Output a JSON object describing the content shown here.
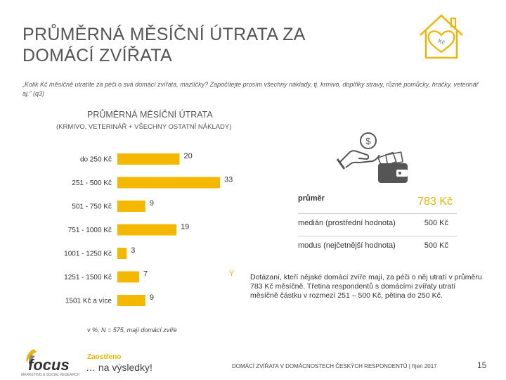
{
  "header": {
    "title_line1": "PRŮMĚRNÁ MĚSÍČNÍ ÚTRATA ZA",
    "title_line2": "DOMÁCÍ ZVÍŘATA"
  },
  "question": "„Kolik Kč měsíčně utratíte za péči o svá domácí zvířata, mazlíčky? Započítejte prosím všechny náklady, tj. krmivo, doplňky stravy, různé pomůcky, hračky, veterinář aj.” (q3)",
  "chart_data": {
    "type": "bar",
    "orientation": "horizontal",
    "title": "PRŮMĚRNÁ MĚSÍČNÍ ÚTRATA",
    "subtitle": "(KRMIVO, VETERINÁŘ + VŠECHNY OSTATNÍ NÁKLADY)",
    "categories": [
      "do 250 Kč",
      "251 - 500 Kč",
      "501 - 750 Kč",
      "751 - 1000 Kč",
      "1001 - 1250 Kč",
      "1251 - 1500 Kč",
      "1501 Kč a více"
    ],
    "values": [
      20,
      33,
      9,
      19,
      3,
      7,
      9
    ],
    "xlim": [
      0,
      33
    ],
    "unit": "%",
    "color": "#f5b800",
    "grid": false
  },
  "stats": [
    {
      "label": "průměr",
      "value": "783 Kč"
    },
    {
      "label": "medián (prostřední hodnota)",
      "value": "500 Kč"
    },
    {
      "label": "modus (nejčetnější hodnota)",
      "value": "500 Kč"
    }
  ],
  "insight": {
    "mark": "Ÿ",
    "text": "Dotázaní, kteří nějaké domácí zvíře mají, za péči o něj utratí v průměru 783 Kč měsíčně. Třetina respondentů s domácími zvířaty utratí měsíčně částku v rozmezí 251 – 500 Kč, pětina do 250 Kč."
  },
  "footnote": "v %, N = 575, mají domácí zvíře",
  "branding": {
    "logo_text": "focus",
    "logo_tag": "MARKETING & SOCIAL RESEARCH",
    "slogan_top": "Zaostřeno",
    "slogan": "… na výsledky!",
    "house_label": "Kč",
    "accent_color": "#f5b800"
  },
  "footer": {
    "text": "DOMÁCÍ ZVÍŘATA V DOMÁCNOSTECH ČESKÝCH RESPONDENTŮ | říjen 2017",
    "page": "15"
  }
}
